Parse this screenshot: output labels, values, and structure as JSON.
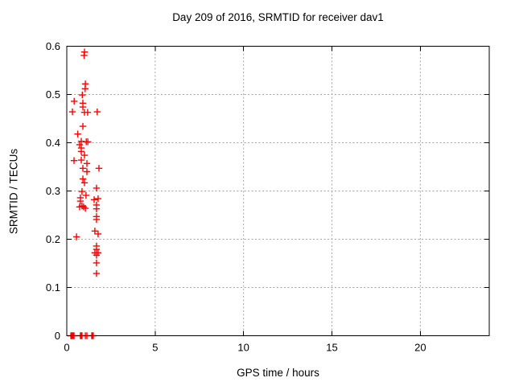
{
  "chart_data": {
    "type": "scatter",
    "title": "Day 209 of 2016, SRMTID for receiver dav1",
    "xlabel": "GPS time / hours",
    "ylabel": "SRMTID / TECUs",
    "xlim": [
      0,
      23.9
    ],
    "ylim": [
      0,
      0.6
    ],
    "xticks": [
      0,
      5,
      10,
      15,
      20
    ],
    "yticks": [
      0,
      0.1,
      0.2,
      0.3,
      0.4,
      0.5,
      0.6
    ],
    "grid": true,
    "legend": "none",
    "marker": "plus",
    "colors": {
      "marker": "#ff0000",
      "grid": "#a6a6a6",
      "axis": "#000000",
      "background": "#ffffff"
    },
    "series": [
      {
        "name": "SRMTID",
        "points": [
          [
            1.0,
            0.588
          ],
          [
            0.98,
            0.581
          ],
          [
            1.05,
            0.522
          ],
          [
            1.04,
            0.512
          ],
          [
            0.88,
            0.499
          ],
          [
            0.42,
            0.486
          ],
          [
            0.91,
            0.482
          ],
          [
            0.91,
            0.474
          ],
          [
            0.32,
            0.464
          ],
          [
            1.0,
            0.463
          ],
          [
            1.18,
            0.463
          ],
          [
            1.72,
            0.464
          ],
          [
            0.91,
            0.434
          ],
          [
            0.62,
            0.418
          ],
          [
            0.82,
            0.403
          ],
          [
            1.1,
            0.402
          ],
          [
            1.19,
            0.402
          ],
          [
            0.73,
            0.396
          ],
          [
            0.82,
            0.389
          ],
          [
            0.82,
            0.382
          ],
          [
            1.0,
            0.374
          ],
          [
            0.82,
            0.364
          ],
          [
            0.41,
            0.363
          ],
          [
            1.14,
            0.357
          ],
          [
            0.91,
            0.347
          ],
          [
            1.82,
            0.347
          ],
          [
            1.14,
            0.34
          ],
          [
            0.91,
            0.325
          ],
          [
            1.0,
            0.317
          ],
          [
            1.68,
            0.306
          ],
          [
            0.86,
            0.299
          ],
          [
            1.09,
            0.291
          ],
          [
            0.77,
            0.286
          ],
          [
            1.77,
            0.284
          ],
          [
            1.55,
            0.282
          ],
          [
            0.77,
            0.279
          ],
          [
            1.68,
            0.271
          ],
          [
            0.86,
            0.269
          ],
          [
            0.73,
            0.267
          ],
          [
            0.95,
            0.267
          ],
          [
            1.05,
            0.264
          ],
          [
            1.68,
            0.263
          ],
          [
            1.68,
            0.247
          ],
          [
            1.68,
            0.241
          ],
          [
            1.59,
            0.217
          ],
          [
            1.77,
            0.211
          ],
          [
            0.55,
            0.205
          ],
          [
            1.68,
            0.186
          ],
          [
            1.68,
            0.179
          ],
          [
            1.59,
            0.172
          ],
          [
            1.77,
            0.172
          ],
          [
            1.68,
            0.167
          ],
          [
            1.68,
            0.151
          ],
          [
            1.68,
            0.129
          ],
          [
            0.23,
            0
          ],
          [
            0.27,
            0
          ],
          [
            0.31,
            0
          ],
          [
            0.36,
            0
          ],
          [
            0.41,
            0
          ],
          [
            0.77,
            0
          ],
          [
            0.82,
            0
          ],
          [
            0.86,
            0
          ],
          [
            1.05,
            0
          ],
          [
            1.14,
            0
          ],
          [
            1.41,
            0
          ],
          [
            1.45,
            0
          ],
          [
            1.5,
            0
          ]
        ]
      }
    ]
  }
}
